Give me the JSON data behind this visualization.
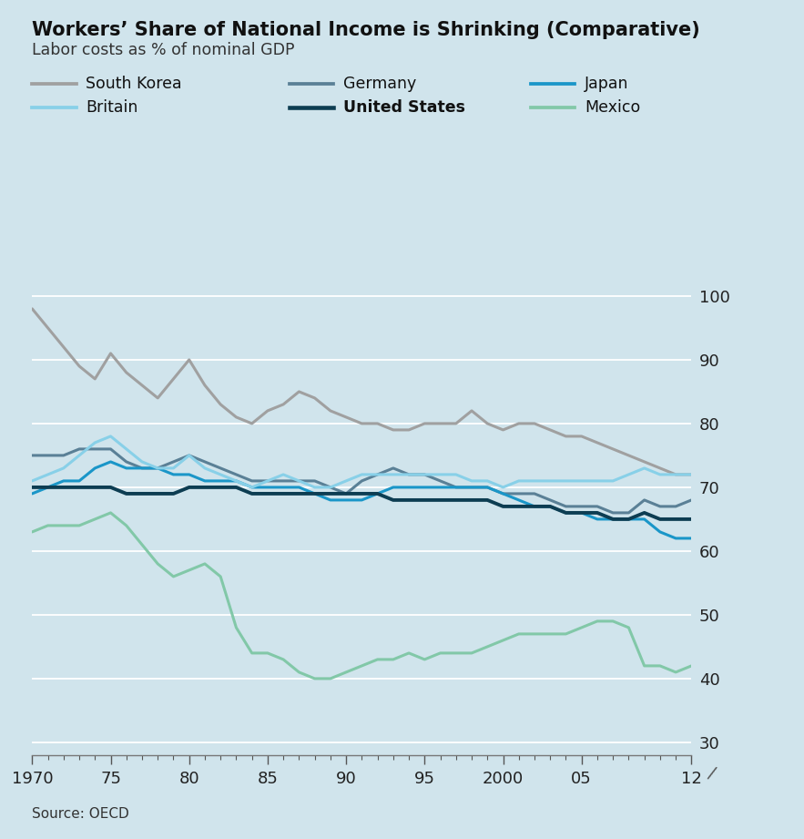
{
  "title": "Workers’ Share of National Income is Shrinking (Comparative)",
  "subtitle": "Labor costs as % of nominal GDP",
  "source": "Source: OECD",
  "background_color": "#d0e4ec",
  "xlim": [
    1970,
    2012
  ],
  "ylim": [
    28,
    103
  ],
  "yticks": [
    30,
    40,
    50,
    60,
    70,
    80,
    90,
    100
  ],
  "xtick_labels": [
    "1970",
    "75",
    "80",
    "85",
    "90",
    "95",
    "2000",
    "05",
    "12"
  ],
  "xtick_positions": [
    1970,
    1975,
    1980,
    1985,
    1990,
    1995,
    2000,
    2005,
    2012
  ],
  "series": {
    "South Korea": {
      "color": "#a0a0a0",
      "linewidth": 2.2,
      "bold": false,
      "data": {
        "years": [
          1970,
          1971,
          1972,
          1973,
          1974,
          1975,
          1976,
          1977,
          1978,
          1979,
          1980,
          1981,
          1982,
          1983,
          1984,
          1985,
          1986,
          1987,
          1988,
          1989,
          1990,
          1991,
          1992,
          1993,
          1994,
          1995,
          1996,
          1997,
          1998,
          1999,
          2000,
          2001,
          2002,
          2003,
          2004,
          2005,
          2006,
          2007,
          2008,
          2009,
          2010,
          2011,
          2012
        ],
        "values": [
          98,
          95,
          92,
          89,
          87,
          91,
          88,
          86,
          84,
          87,
          90,
          86,
          83,
          81,
          80,
          82,
          83,
          85,
          84,
          82,
          81,
          80,
          80,
          79,
          79,
          80,
          80,
          80,
          82,
          80,
          79,
          80,
          80,
          79,
          78,
          78,
          77,
          76,
          75,
          74,
          73,
          72,
          72
        ]
      }
    },
    "Germany": {
      "color": "#5a8096",
      "linewidth": 2.2,
      "bold": false,
      "data": {
        "years": [
          1970,
          1971,
          1972,
          1973,
          1974,
          1975,
          1976,
          1977,
          1978,
          1979,
          1980,
          1981,
          1982,
          1983,
          1984,
          1985,
          1986,
          1987,
          1988,
          1989,
          1990,
          1991,
          1992,
          1993,
          1994,
          1995,
          1996,
          1997,
          1998,
          1999,
          2000,
          2001,
          2002,
          2003,
          2004,
          2005,
          2006,
          2007,
          2008,
          2009,
          2010,
          2011,
          2012
        ],
        "values": [
          75,
          75,
          75,
          76,
          76,
          76,
          74,
          73,
          73,
          74,
          75,
          74,
          73,
          72,
          71,
          71,
          71,
          71,
          71,
          70,
          69,
          71,
          72,
          73,
          72,
          72,
          71,
          70,
          70,
          70,
          69,
          69,
          69,
          68,
          67,
          67,
          67,
          66,
          66,
          68,
          67,
          67,
          68
        ]
      }
    },
    "Japan": {
      "color": "#1a96c8",
      "linewidth": 2.2,
      "bold": false,
      "data": {
        "years": [
          1970,
          1971,
          1972,
          1973,
          1974,
          1975,
          1976,
          1977,
          1978,
          1979,
          1980,
          1981,
          1982,
          1983,
          1984,
          1985,
          1986,
          1987,
          1988,
          1989,
          1990,
          1991,
          1992,
          1993,
          1994,
          1995,
          1996,
          1997,
          1998,
          1999,
          2000,
          2001,
          2002,
          2003,
          2004,
          2005,
          2006,
          2007,
          2008,
          2009,
          2010,
          2011,
          2012
        ],
        "values": [
          69,
          70,
          71,
          71,
          73,
          74,
          73,
          73,
          73,
          72,
          72,
          71,
          71,
          71,
          70,
          70,
          70,
          70,
          69,
          68,
          68,
          68,
          69,
          70,
          70,
          70,
          70,
          70,
          70,
          70,
          69,
          68,
          67,
          67,
          66,
          66,
          65,
          65,
          65,
          65,
          63,
          62,
          62
        ]
      }
    },
    "Britain": {
      "color": "#88d0e8",
      "linewidth": 2.2,
      "bold": false,
      "data": {
        "years": [
          1970,
          1971,
          1972,
          1973,
          1974,
          1975,
          1976,
          1977,
          1978,
          1979,
          1980,
          1981,
          1982,
          1983,
          1984,
          1985,
          1986,
          1987,
          1988,
          1989,
          1990,
          1991,
          1992,
          1993,
          1994,
          1995,
          1996,
          1997,
          1998,
          1999,
          2000,
          2001,
          2002,
          2003,
          2004,
          2005,
          2006,
          2007,
          2008,
          2009,
          2010,
          2011,
          2012
        ],
        "values": [
          71,
          72,
          73,
          75,
          77,
          78,
          76,
          74,
          73,
          73,
          75,
          73,
          72,
          71,
          70,
          71,
          72,
          71,
          70,
          70,
          71,
          72,
          72,
          72,
          72,
          72,
          72,
          72,
          71,
          71,
          70,
          71,
          71,
          71,
          71,
          71,
          71,
          71,
          72,
          73,
          72,
          72,
          72
        ]
      }
    },
    "United States": {
      "color": "#0d3d52",
      "linewidth": 2.8,
      "bold": true,
      "data": {
        "years": [
          1970,
          1971,
          1972,
          1973,
          1974,
          1975,
          1976,
          1977,
          1978,
          1979,
          1980,
          1981,
          1982,
          1983,
          1984,
          1985,
          1986,
          1987,
          1988,
          1989,
          1990,
          1991,
          1992,
          1993,
          1994,
          1995,
          1996,
          1997,
          1998,
          1999,
          2000,
          2001,
          2002,
          2003,
          2004,
          2005,
          2006,
          2007,
          2008,
          2009,
          2010,
          2011,
          2012
        ],
        "values": [
          70,
          70,
          70,
          70,
          70,
          70,
          69,
          69,
          69,
          69,
          70,
          70,
          70,
          70,
          69,
          69,
          69,
          69,
          69,
          69,
          69,
          69,
          69,
          68,
          68,
          68,
          68,
          68,
          68,
          68,
          67,
          67,
          67,
          67,
          66,
          66,
          66,
          65,
          65,
          66,
          65,
          65,
          65
        ]
      }
    },
    "Mexico": {
      "color": "#82c8a8",
      "linewidth": 2.2,
      "bold": false,
      "data": {
        "years": [
          1970,
          1971,
          1972,
          1973,
          1974,
          1975,
          1976,
          1977,
          1978,
          1979,
          1980,
          1981,
          1982,
          1983,
          1984,
          1985,
          1986,
          1987,
          1988,
          1989,
          1990,
          1991,
          1992,
          1993,
          1994,
          1995,
          1996,
          1997,
          1998,
          1999,
          2000,
          2001,
          2002,
          2003,
          2004,
          2005,
          2006,
          2007,
          2008,
          2009,
          2010,
          2011,
          2012
        ],
        "values": [
          63,
          64,
          64,
          64,
          65,
          66,
          64,
          61,
          58,
          56,
          57,
          58,
          56,
          48,
          44,
          44,
          43,
          41,
          40,
          40,
          41,
          42,
          43,
          43,
          44,
          43,
          44,
          44,
          44,
          45,
          46,
          47,
          47,
          47,
          47,
          48,
          49,
          49,
          48,
          42,
          42,
          41,
          42
        ]
      }
    }
  },
  "legend_order": [
    "South Korea",
    "Germany",
    "Japan",
    "Britain",
    "United States",
    "Mexico"
  ],
  "legend_cols": 3
}
